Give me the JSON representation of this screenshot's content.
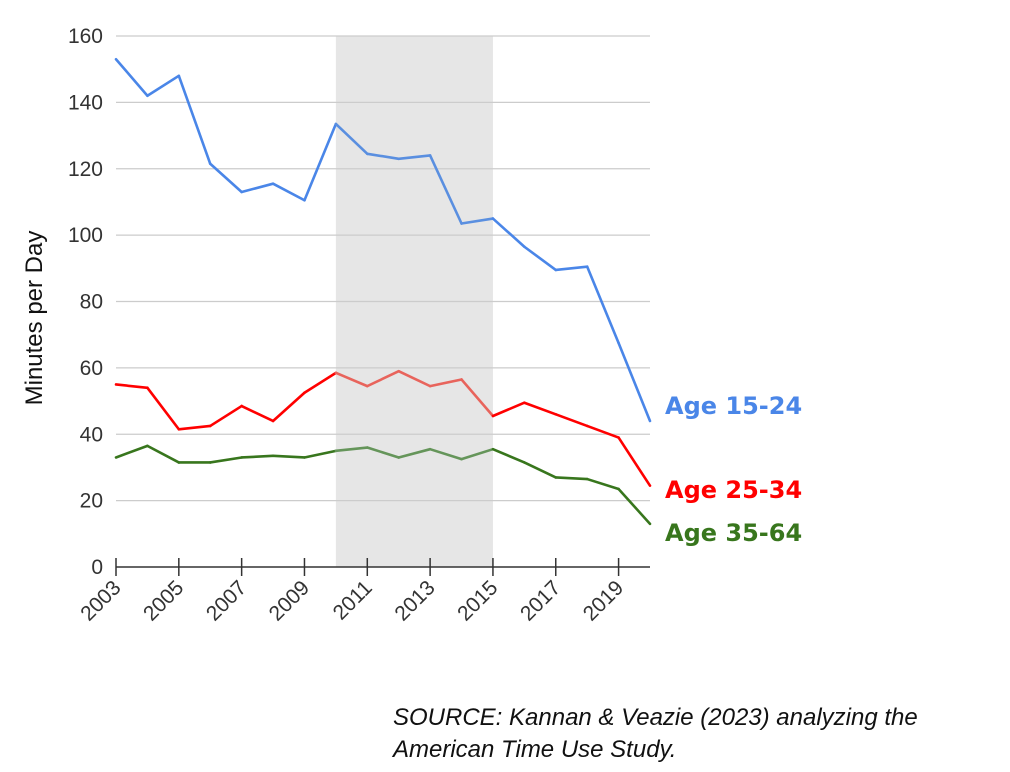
{
  "chart_data": {
    "type": "line",
    "ylabel": "Minutes per Day",
    "xlabel": "",
    "xlim": [
      2003,
      2020
    ],
    "ylim": [
      0,
      160
    ],
    "y_ticks": [
      0,
      20,
      40,
      60,
      80,
      100,
      120,
      140,
      160
    ],
    "x_tick_labels": [
      "2003",
      "2005",
      "2007",
      "2009",
      "2011",
      "2013",
      "2015",
      "2017",
      "2019"
    ],
    "x_tick_years": [
      2003,
      2005,
      2007,
      2009,
      2011,
      2013,
      2015,
      2017,
      2019
    ],
    "grid": true,
    "shaded_region": {
      "x_start": 2010,
      "x_end": 2015,
      "color": "#e6e6e6"
    },
    "x": [
      2003,
      2004,
      2005,
      2006,
      2007,
      2008,
      2009,
      2010,
      2011,
      2012,
      2013,
      2014,
      2015,
      2016,
      2017,
      2018,
      2019,
      2020
    ],
    "series": [
      {
        "name": "Age 15-24",
        "color": "#4a86e8",
        "shaded_color": "#5a8fe0",
        "values": [
          153,
          142,
          148,
          121.5,
          113,
          115.5,
          110.5,
          133.5,
          124.5,
          123,
          124,
          103.5,
          105,
          96.5,
          89.5,
          90.5,
          67.5,
          44
        ]
      },
      {
        "name": "Age 25-34",
        "color": "#ff0000",
        "shaded_color": "#e8645c",
        "values": [
          55,
          54,
          41.5,
          42.5,
          48.5,
          44,
          52.5,
          58.5,
          54.5,
          59,
          54.5,
          56.5,
          45.5,
          49.5,
          46,
          42.5,
          39,
          24.5
        ]
      },
      {
        "name": "Age 35-64",
        "color": "#38761d",
        "shaded_color": "#65955a",
        "values": [
          33,
          36.5,
          31.5,
          31.5,
          33,
          33.5,
          33,
          35,
          36,
          33,
          35.5,
          32.5,
          35.5,
          31.5,
          27,
          26.5,
          23.5,
          13
        ]
      }
    ]
  },
  "source_note": "SOURCE: Kannan & Veazie (2023) analyzing the American Time Use Study."
}
